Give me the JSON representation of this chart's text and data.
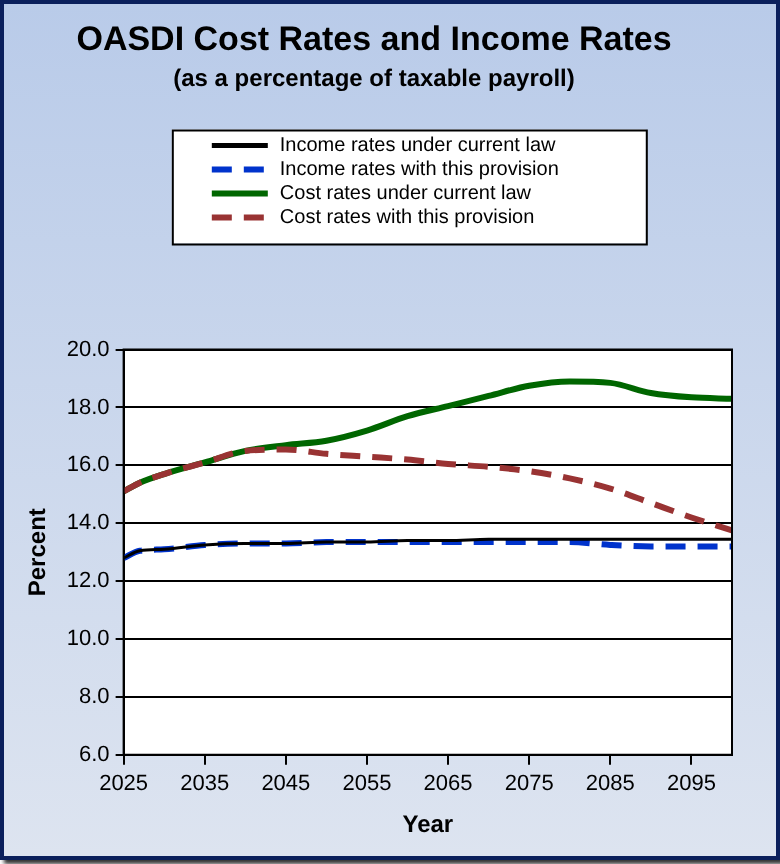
{
  "chart_data": {
    "type": "line",
    "title": "OASDI Cost Rates and Income Rates",
    "subtitle": "(as a percentage of taxable payroll)",
    "xlabel": "Year",
    "ylabel": "Percent",
    "x": [
      2025,
      2027,
      2030,
      2035,
      2040,
      2045,
      2050,
      2055,
      2060,
      2065,
      2070,
      2075,
      2080,
      2085,
      2090,
      2095,
      2100
    ],
    "series": [
      {
        "name": "Income rates under current law",
        "color": "#000000",
        "line_style": "solid",
        "values": [
          12.8,
          13.05,
          13.1,
          13.25,
          13.3,
          13.3,
          13.35,
          13.35,
          13.4,
          13.4,
          13.45,
          13.45,
          13.45,
          13.45,
          13.45,
          13.45,
          13.45
        ]
      },
      {
        "name": "Income rates with this provision",
        "color": "#0033cc",
        "line_style": "dashed",
        "values": [
          12.8,
          13.05,
          13.1,
          13.25,
          13.3,
          13.3,
          13.35,
          13.35,
          13.35,
          13.35,
          13.35,
          13.35,
          13.35,
          13.25,
          13.2,
          13.2,
          13.2
        ]
      },
      {
        "name": "Cost rates under current law",
        "color": "#006600",
        "line_style": "solid",
        "values": [
          15.1,
          15.4,
          15.7,
          16.1,
          16.5,
          16.7,
          16.85,
          17.2,
          17.7,
          18.05,
          18.4,
          18.75,
          18.9,
          18.85,
          18.5,
          18.35,
          18.3
        ]
      },
      {
        "name": "Cost rates with this provision",
        "color": "#993333",
        "line_style": "dashed",
        "values": [
          15.1,
          15.4,
          15.7,
          16.1,
          16.5,
          16.55,
          16.4,
          16.3,
          16.2,
          16.05,
          15.95,
          15.8,
          15.55,
          15.2,
          14.7,
          14.2,
          13.75
        ]
      }
    ],
    "xlim": [
      2025,
      2100
    ],
    "xticks": [
      2025,
      2035,
      2045,
      2055,
      2065,
      2075,
      2085,
      2095
    ],
    "ylim": [
      6,
      20
    ],
    "yticks": [
      {
        "value": 6,
        "label": "6.0"
      },
      {
        "value": 8,
        "label": "8.0"
      },
      {
        "value": 10,
        "label": "10.0"
      },
      {
        "value": 12,
        "label": "12.0"
      },
      {
        "value": 14,
        "label": "14.0"
      },
      {
        "value": 16,
        "label": "16.0"
      },
      {
        "value": 18,
        "label": "18.0"
      },
      {
        "value": 20,
        "label": "20.0"
      }
    ],
    "grid": "y",
    "legend": "top",
    "marker": "none"
  }
}
